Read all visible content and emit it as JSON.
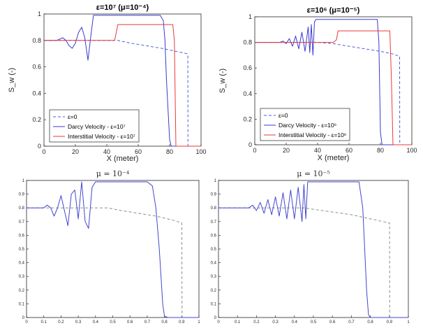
{
  "chart_data": [
    {
      "id": "p1",
      "type": "line",
      "title": "ε=10⁷ (μ=10⁻⁴)",
      "xlabel": "X (meter)",
      "ylabel": "S_w (-)",
      "xlim": [
        0,
        100
      ],
      "ylim": [
        0,
        1
      ],
      "xticks": [
        "0",
        "20",
        "40",
        "60",
        "80",
        "100"
      ],
      "yticks": [
        "0",
        "0.2",
        "0.4",
        "0.6",
        "0.8",
        "1"
      ],
      "legend": "bottom-left",
      "series": [
        {
          "name": "ε=0",
          "color": "#4a5ee0",
          "dash": true,
          "x": [
            0,
            4,
            10,
            20,
            30,
            40,
            47,
            55,
            65,
            75,
            85,
            91,
            91.6,
            91.7
          ],
          "y": [
            0.8,
            0.8,
            0.8,
            0.8,
            0.8,
            0.8,
            0.8,
            0.78,
            0.76,
            0.74,
            0.715,
            0.7,
            0.69,
            0
          ]
        },
        {
          "name": "Darcy Velocity - ε=10⁷",
          "color": "#3a3ad0",
          "dash": false,
          "x": [
            0,
            4,
            8,
            10,
            12,
            14,
            16,
            18,
            20,
            22,
            24,
            26,
            28,
            30,
            31.5,
            33,
            34,
            35,
            60,
            74,
            76,
            77,
            78,
            80,
            81,
            85,
            100
          ],
          "y": [
            0.8,
            0.8,
            0.8,
            0.81,
            0.82,
            0.8,
            0.76,
            0.74,
            0.78,
            0.86,
            0.9,
            0.82,
            0.65,
            0.85,
            0.99,
            0.99,
            0.99,
            0.99,
            0.99,
            0.99,
            0.95,
            0.8,
            0.5,
            0.05,
            0,
            0,
            0
          ]
        },
        {
          "name": "Interstitial Velocity - ε=10⁷",
          "color": "#e83a3a",
          "dash": false,
          "x": [
            0,
            10,
            20,
            30,
            40,
            45,
            46,
            47,
            50,
            60,
            70,
            80,
            82,
            83,
            83.5,
            84,
            86,
            100
          ],
          "y": [
            0.8,
            0.8,
            0.8,
            0.8,
            0.8,
            0.8,
            0.86,
            0.92,
            0.92,
            0.92,
            0.92,
            0.92,
            0.92,
            0.8,
            0.4,
            0,
            0,
            0
          ]
        }
      ]
    },
    {
      "id": "p2",
      "type": "line",
      "title": "ε=10⁶ (μ=10⁻⁵)",
      "xlabel": "X (meter)",
      "ylabel": "S_w (-)",
      "xlim": [
        0,
        100
      ],
      "ylim": [
        0,
        1
      ],
      "xticks": [
        "0",
        "20",
        "40",
        "60",
        "80",
        "100"
      ],
      "yticks": [
        "0",
        "0.2",
        "0.4",
        "0.6",
        "0.8",
        "1"
      ],
      "legend": "bottom-left",
      "series": [
        {
          "name": "ε=0",
          "color": "#4a5ee0",
          "dash": true,
          "x": [
            0,
            10,
            20,
            30,
            40,
            50,
            60,
            70,
            80,
            88,
            92,
            92.2,
            92.3
          ],
          "y": [
            0.8,
            0.8,
            0.8,
            0.8,
            0.8,
            0.79,
            0.77,
            0.75,
            0.73,
            0.71,
            0.69,
            0.69,
            0
          ]
        },
        {
          "name": "Darcy Velocity - ε=10⁶",
          "color": "#3a3ad0",
          "dash": false,
          "x": [
            0,
            16,
            18,
            20,
            22,
            24,
            26,
            28,
            30,
            32,
            34,
            35,
            36,
            37,
            38,
            39,
            40,
            41,
            60,
            78,
            79,
            80,
            81,
            100
          ],
          "y": [
            0.8,
            0.8,
            0.81,
            0.79,
            0.83,
            0.77,
            0.85,
            0.75,
            0.88,
            0.73,
            0.92,
            0.72,
            0.94,
            0.7,
            0.96,
            0.98,
            0.98,
            0.98,
            0.98,
            0.98,
            0.8,
            0.1,
            0,
            0
          ]
        },
        {
          "name": "Interstitial Velocity - ε=10⁶",
          "color": "#e83a3a",
          "dash": false,
          "x": [
            0,
            10,
            20,
            30,
            40,
            50,
            52,
            53,
            55,
            70,
            86,
            87,
            88,
            90,
            100
          ],
          "y": [
            0.8,
            0.8,
            0.8,
            0.8,
            0.8,
            0.8,
            0.82,
            0.89,
            0.89,
            0.89,
            0.89,
            0.5,
            0,
            0,
            0
          ]
        }
      ]
    },
    {
      "id": "p3",
      "type": "line",
      "title": "μ = 10⁻⁴",
      "xlabel": "",
      "ylabel": "",
      "xlim": [
        0,
        1
      ],
      "ylim": [
        0,
        1
      ],
      "xticks": [
        "0",
        "0.1",
        "0.2",
        "0.3",
        "0.4",
        "0.5",
        "0.6",
        "0.7",
        "0.8",
        "0.9",
        "1"
      ],
      "yticks": [
        "0",
        "0.1",
        "0.2",
        "0.3",
        "0.4",
        "0.5",
        "0.6",
        "0.7",
        "0.8",
        "0.9",
        "1"
      ],
      "legend": "none",
      "series": [
        {
          "name": "dashed",
          "color": "#7a9a7a",
          "dash": true,
          "x": [
            0,
            0.1,
            0.2,
            0.3,
            0.4,
            0.47,
            0.55,
            0.65,
            0.75,
            0.85,
            0.9,
            0.901,
            0.902
          ],
          "y": [
            0.8,
            0.8,
            0.8,
            0.8,
            0.8,
            0.8,
            0.78,
            0.76,
            0.74,
            0.71,
            0.69,
            0.69,
            0
          ]
        },
        {
          "name": "solid",
          "color": "#4545d0",
          "dash": false,
          "x": [
            0,
            0.1,
            0.12,
            0.14,
            0.16,
            0.18,
            0.2,
            0.22,
            0.24,
            0.26,
            0.28,
            0.3,
            0.32,
            0.34,
            0.36,
            0.38,
            0.4,
            0.45,
            0.6,
            0.7,
            0.73,
            0.75,
            0.77,
            0.79,
            0.8,
            0.82,
            1
          ],
          "y": [
            0.8,
            0.8,
            0.82,
            0.8,
            0.74,
            0.8,
            0.89,
            0.78,
            0.67,
            0.9,
            0.93,
            0.72,
            0.99,
            0.7,
            0.65,
            0.95,
            0.99,
            0.99,
            0.99,
            0.99,
            0.96,
            0.8,
            0.5,
            0.1,
            0.01,
            0,
            0
          ]
        }
      ]
    },
    {
      "id": "p4",
      "type": "line",
      "title": "μ = 10⁻⁵",
      "xlabel": "",
      "ylabel": "",
      "xlim": [
        0,
        1
      ],
      "ylim": [
        0,
        1
      ],
      "xticks": [
        "0",
        "0.1",
        "0.2",
        "0.3",
        "0.4",
        "0.5",
        "0.6",
        "0.7",
        "0.8",
        "0.9",
        "1"
      ],
      "yticks": [
        "0",
        "0.1",
        "0.2",
        "0.3",
        "0.4",
        "0.5",
        "0.6",
        "0.7",
        "0.8",
        "0.9",
        "1"
      ],
      "legend": "none",
      "series": [
        {
          "name": "dashed",
          "color": "#7a9a7a",
          "dash": true,
          "x": [
            0,
            0.1,
            0.2,
            0.3,
            0.4,
            0.45,
            0.5,
            0.6,
            0.7,
            0.8,
            0.9,
            0.901,
            0.902
          ],
          "y": [
            0.8,
            0.8,
            0.8,
            0.8,
            0.8,
            0.8,
            0.79,
            0.77,
            0.75,
            0.72,
            0.69,
            0.69,
            0
          ]
        },
        {
          "name": "solid",
          "color": "#4545d0",
          "dash": false,
          "x": [
            0,
            0.16,
            0.18,
            0.2,
            0.22,
            0.24,
            0.26,
            0.28,
            0.3,
            0.32,
            0.34,
            0.36,
            0.38,
            0.4,
            0.42,
            0.44,
            0.45,
            0.46,
            0.47,
            0.48,
            0.5,
            0.6,
            0.7,
            0.74,
            0.76,
            0.78,
            0.79,
            0.8,
            1
          ],
          "y": [
            0.8,
            0.8,
            0.82,
            0.78,
            0.84,
            0.76,
            0.86,
            0.75,
            0.88,
            0.74,
            0.91,
            0.72,
            0.93,
            0.72,
            0.95,
            0.7,
            0.97,
            0.72,
            0.99,
            0.99,
            0.99,
            0.99,
            0.99,
            0.99,
            0.8,
            0.2,
            0.02,
            0,
            0
          ]
        }
      ]
    }
  ]
}
